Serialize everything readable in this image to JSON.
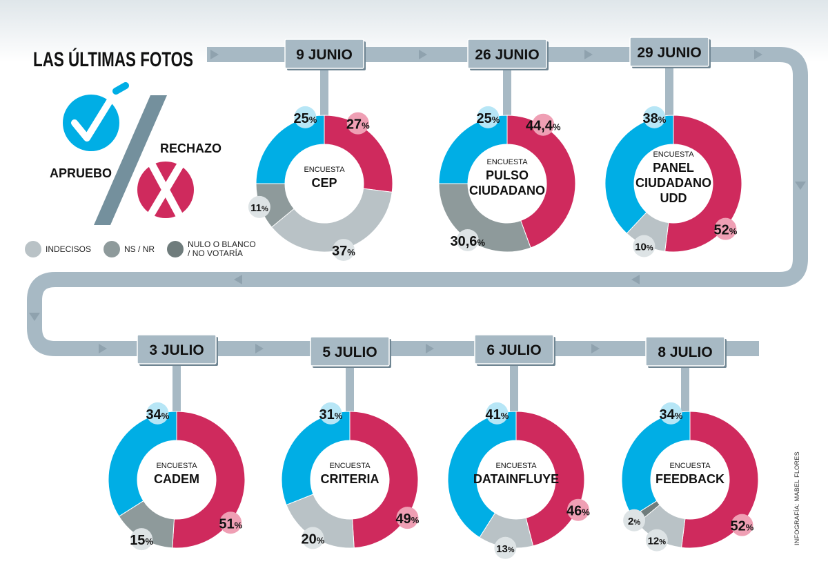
{
  "title": "LAS ÚLTIMAS FOTOS",
  "labels": {
    "apruebo": "APRUEBO",
    "rechazo": "RECHAZO",
    "encuesta": "ENCUESTA"
  },
  "legend": [
    {
      "label": "INDECISOS",
      "color": "#b9c2c6"
    },
    {
      "label": "NS / NR",
      "color": "#8e9a9b"
    },
    {
      "label": "NULO O BLANCO\n/ NO VOTARÍA",
      "color": "#6f7c7c"
    }
  ],
  "credit": "INFOGRAFÍA: MABEL FLORES",
  "colors": {
    "apruebo": "#00aee5",
    "rechazo": "#cf2a5d",
    "indecisos": "#b9c2c6",
    "nsnr": "#8e9a9b",
    "nulo": "#6f7c7c",
    "track": "#a7b9c4",
    "date_box": "#a7b9c4",
    "arrow": "#8fa2ae"
  },
  "chart_data": [
    {
      "type": "pie",
      "date": "9 JUNIO",
      "pollster": [
        "CEP"
      ],
      "slices": [
        {
          "name": "Rechazo",
          "value": 27,
          "label": "27"
        },
        {
          "name": "Indecisos",
          "value": 37,
          "label": "37"
        },
        {
          "name": "NS / NR",
          "value": 11,
          "label": "11"
        },
        {
          "name": "Apruebo",
          "value": 25,
          "label": "25"
        }
      ]
    },
    {
      "type": "pie",
      "date": "26 JUNIO",
      "pollster": [
        "PULSO",
        "CIUDADANO"
      ],
      "slices": [
        {
          "name": "Rechazo",
          "value": 44.4,
          "label": "44,4"
        },
        {
          "name": "NS / NR",
          "value": 30.6,
          "label": "30,6"
        },
        {
          "name": "Apruebo",
          "value": 25,
          "label": "25"
        }
      ]
    },
    {
      "type": "pie",
      "date": "29 JUNIO",
      "pollster": [
        "PANEL",
        "CIUDADANO",
        "UDD"
      ],
      "slices": [
        {
          "name": "Rechazo",
          "value": 52,
          "label": "52"
        },
        {
          "name": "Indecisos",
          "value": 10,
          "label": "10"
        },
        {
          "name": "Apruebo",
          "value": 38,
          "label": "38"
        }
      ]
    },
    {
      "type": "pie",
      "date": "3 JULIO",
      "pollster": [
        "CADEM"
      ],
      "slices": [
        {
          "name": "Rechazo",
          "value": 51,
          "label": "51"
        },
        {
          "name": "NS / NR",
          "value": 15,
          "label": "15"
        },
        {
          "name": "Apruebo",
          "value": 34,
          "label": "34"
        }
      ]
    },
    {
      "type": "pie",
      "date": "5 JULIO",
      "pollster": [
        "CRITERIA"
      ],
      "slices": [
        {
          "name": "Rechazo",
          "value": 49,
          "label": "49"
        },
        {
          "name": "Indecisos",
          "value": 20,
          "label": "20"
        },
        {
          "name": "Apruebo",
          "value": 31,
          "label": "31"
        }
      ]
    },
    {
      "type": "pie",
      "date": "6 JULIO",
      "pollster": [
        "DATAINFLUYE"
      ],
      "slices": [
        {
          "name": "Rechazo",
          "value": 46,
          "label": "46"
        },
        {
          "name": "Indecisos",
          "value": 13,
          "label": "13"
        },
        {
          "name": "Apruebo",
          "value": 41,
          "label": "41"
        }
      ]
    },
    {
      "type": "pie",
      "date": "8 JULIO",
      "pollster": [
        "FEEDBACK"
      ],
      "slices": [
        {
          "name": "Rechazo",
          "value": 52,
          "label": "52"
        },
        {
          "name": "Indecisos",
          "value": 12,
          "label": "12"
        },
        {
          "name": "Nulo o blanco / No votaría",
          "value": 2,
          "label": "2"
        },
        {
          "name": "Apruebo",
          "value": 34,
          "label": "34"
        }
      ]
    }
  ]
}
